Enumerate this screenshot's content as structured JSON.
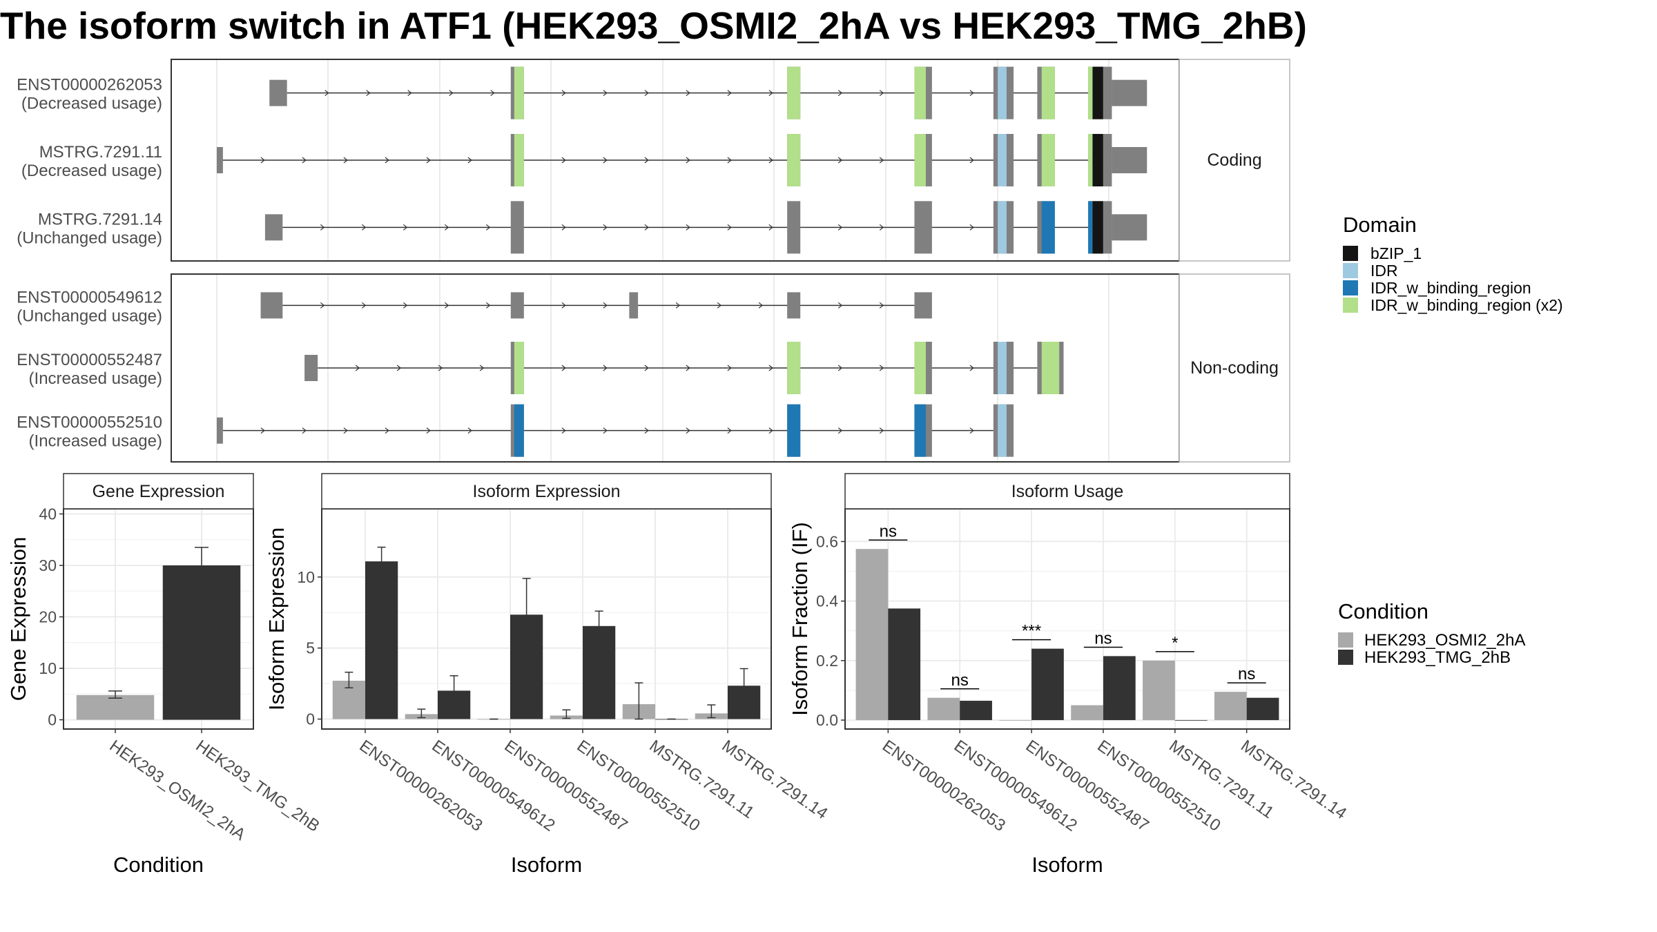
{
  "title": "The isoform switch in ATF1 (HEK293_OSMI2_2hA vs HEK293_TMG_2hB)",
  "colors": {
    "exon": "#808080",
    "bZIP_1": "#141414",
    "IDR": "#9ecae1",
    "IDR_w_binding_region": "#1f78b4",
    "IDR_w_binding_region_x2": "#b2df8a",
    "cond1": "#a9a9a9",
    "cond2": "#333333",
    "panel_border": "#333333",
    "strip_bg": "#ffffff",
    "grid": "#ebebeb"
  },
  "structure": {
    "groups": [
      {
        "label": "Coding",
        "isoforms": [
          {
            "id": "ENST00000262053",
            "usage": "(Decreased usage)",
            "start": 0.06,
            "end": 0.95,
            "exons": [
              [
                0.06,
                0.08,
                "utr"
              ],
              [
                0.335,
                0.35,
                "cds"
              ],
              [
                0.65,
                0.665,
                "cds"
              ],
              [
                0.795,
                0.815,
                "cds"
              ],
              [
                0.885,
                0.908,
                "cds"
              ],
              [
                0.935,
                0.955,
                "cds"
              ],
              [
                0.993,
                1.02,
                "cds"
              ],
              [
                1.02,
                1.06,
                "utr"
              ]
            ],
            "domains": [
              [
                0.339,
                0.35,
                "IDR_w_binding_region_x2"
              ],
              [
                0.65,
                0.665,
                "IDR_w_binding_region_x2"
              ],
              [
                0.795,
                0.808,
                "IDR_w_binding_region_x2"
              ],
              [
                0.89,
                0.9,
                "IDR"
              ],
              [
                0.94,
                0.955,
                "IDR_w_binding_region_x2"
              ],
              [
                0.993,
                0.998,
                "IDR_w_binding_region_x2"
              ],
              [
                0.998,
                1.01,
                "bZIP_1"
              ]
            ]
          },
          {
            "id": "MSTRG.7291.11",
            "usage": "(Decreased usage)",
            "start": 0.0,
            "end": 0.95,
            "exons": [
              [
                0.0,
                0.007,
                "utr"
              ],
              [
                0.335,
                0.35,
                "cds"
              ],
              [
                0.65,
                0.665,
                "cds"
              ],
              [
                0.795,
                0.815,
                "cds"
              ],
              [
                0.885,
                0.908,
                "cds"
              ],
              [
                0.935,
                0.955,
                "cds"
              ],
              [
                0.993,
                1.02,
                "cds"
              ],
              [
                1.02,
                1.06,
                "utr"
              ]
            ],
            "domains": [
              [
                0.339,
                0.35,
                "IDR_w_binding_region_x2"
              ],
              [
                0.65,
                0.665,
                "IDR_w_binding_region_x2"
              ],
              [
                0.795,
                0.808,
                "IDR_w_binding_region_x2"
              ],
              [
                0.89,
                0.9,
                "IDR"
              ],
              [
                0.94,
                0.955,
                "IDR_w_binding_region_x2"
              ],
              [
                0.993,
                0.998,
                "IDR_w_binding_region_x2"
              ],
              [
                0.998,
                1.01,
                "bZIP_1"
              ]
            ]
          },
          {
            "id": "MSTRG.7291.14",
            "usage": "(Unchanged usage)",
            "start": 0.055,
            "end": 0.95,
            "exons": [
              [
                0.055,
                0.075,
                "utr"
              ],
              [
                0.335,
                0.35,
                "cds"
              ],
              [
                0.65,
                0.665,
                "cds"
              ],
              [
                0.795,
                0.815,
                "cds"
              ],
              [
                0.885,
                0.908,
                "cds"
              ],
              [
                0.935,
                0.955,
                "cds"
              ],
              [
                0.993,
                1.02,
                "cds"
              ],
              [
                1.02,
                1.06,
                "utr"
              ]
            ],
            "domains": [
              [
                0.89,
                0.9,
                "IDR"
              ],
              [
                0.94,
                0.955,
                "IDR_w_binding_region"
              ],
              [
                0.993,
                0.998,
                "IDR_w_binding_region"
              ],
              [
                0.998,
                1.01,
                "bZIP_1"
              ]
            ]
          }
        ]
      },
      {
        "label": "Non-coding",
        "isoforms": [
          {
            "id": "ENST00000549612",
            "usage": "(Unchanged usage)",
            "start": 0.05,
            "end": 0.8,
            "exons": [
              [
                0.05,
                0.075,
                "utr"
              ],
              [
                0.335,
                0.35,
                "utr"
              ],
              [
                0.47,
                0.48,
                "utr"
              ],
              [
                0.65,
                0.665,
                "utr"
              ],
              [
                0.795,
                0.815,
                "utr"
              ]
            ],
            "domains": []
          },
          {
            "id": "ENST00000552487",
            "usage": "(Increased usage)",
            "start": 0.1,
            "end": 0.95,
            "exons": [
              [
                0.1,
                0.115,
                "utr"
              ],
              [
                0.335,
                0.35,
                "cds"
              ],
              [
                0.65,
                0.665,
                "cds"
              ],
              [
                0.795,
                0.815,
                "cds"
              ],
              [
                0.885,
                0.908,
                "cds"
              ],
              [
                0.935,
                0.965,
                "cds"
              ]
            ],
            "domains": [
              [
                0.339,
                0.35,
                "IDR_w_binding_region_x2"
              ],
              [
                0.65,
                0.665,
                "IDR_w_binding_region_x2"
              ],
              [
                0.795,
                0.808,
                "IDR_w_binding_region_x2"
              ],
              [
                0.89,
                0.9,
                "IDR"
              ],
              [
                0.94,
                0.96,
                "IDR_w_binding_region_x2"
              ]
            ]
          },
          {
            "id": "ENST00000552510",
            "usage": "(Increased usage)",
            "start": 0.0,
            "end": 0.9,
            "exons": [
              [
                0.0,
                0.007,
                "utr"
              ],
              [
                0.335,
                0.35,
                "cds"
              ],
              [
                0.65,
                0.665,
                "cds"
              ],
              [
                0.795,
                0.815,
                "cds"
              ],
              [
                0.885,
                0.908,
                "cds"
              ]
            ],
            "domains": [
              [
                0.339,
                0.35,
                "IDR_w_binding_region"
              ],
              [
                0.65,
                0.665,
                "IDR_w_binding_region"
              ],
              [
                0.795,
                0.808,
                "IDR_w_binding_region"
              ],
              [
                0.89,
                0.9,
                "IDR"
              ]
            ]
          }
        ]
      }
    ]
  },
  "domain_legend": {
    "title": "Domain",
    "items": [
      {
        "label": "bZIP_1",
        "key": "bZIP_1"
      },
      {
        "label": "IDR",
        "key": "IDR"
      },
      {
        "label": "IDR_w_binding_region",
        "key": "IDR_w_binding_region"
      },
      {
        "label": "IDR_w_binding_region (x2)",
        "key": "IDR_w_binding_region_x2"
      }
    ]
  },
  "condition_legend": {
    "title": "Condition",
    "items": [
      {
        "label": "HEK293_OSMI2_2hA",
        "key": "cond1"
      },
      {
        "label": "HEK293_TMG_2hB",
        "key": "cond2"
      }
    ]
  },
  "chart_data": [
    {
      "type": "bar",
      "title": "Gene Expression",
      "xlabel": "Condition",
      "ylabel": "Gene Expression",
      "ylim": [
        -1.8,
        41
      ],
      "yticks": [
        0,
        10,
        20,
        30,
        40
      ],
      "categories": [
        "HEK293_OSMI2_2hA",
        "HEK293_TMG_2hB"
      ],
      "values": [
        4.8,
        30.0
      ],
      "err_low": [
        4.2,
        26.5
      ],
      "err_high": [
        5.6,
        33.5
      ],
      "bar_colors": [
        "cond1",
        "cond2"
      ]
    },
    {
      "type": "bar",
      "title": "Isoform Expression",
      "xlabel": "Isoform",
      "ylabel": "Isoform Expression",
      "ylim": [
        -0.7,
        14.8
      ],
      "yticks": [
        0,
        5,
        10
      ],
      "categories": [
        "ENST00000262053",
        "ENST00000549612",
        "ENST00000552487",
        "ENST00000552510",
        "MSTRG.7291.11",
        "MSTRG.7291.14"
      ],
      "series": [
        {
          "name": "HEK293_OSMI2_2hA",
          "color": "cond1",
          "values": [
            2.7,
            0.35,
            0.0,
            0.25,
            1.05,
            0.4
          ],
          "err_low": [
            2.2,
            0.1,
            0.0,
            0.05,
            0.0,
            0.1
          ],
          "err_high": [
            3.3,
            0.7,
            0.0,
            0.65,
            2.55,
            1.0
          ]
        },
        {
          "name": "HEK293_TMG_2hB",
          "color": "cond2",
          "values": [
            11.1,
            2.0,
            7.35,
            6.55,
            0.0,
            2.35
          ],
          "err_low": [
            10.5,
            1.25,
            4.8,
            5.7,
            0.0,
            1.5
          ],
          "err_high": [
            12.1,
            3.05,
            9.9,
            7.6,
            0.0,
            3.55
          ]
        }
      ]
    },
    {
      "type": "bar",
      "title": "Isoform Usage",
      "xlabel": "Isoform",
      "ylabel": "Isoform Fraction (IF)",
      "ylim": [
        -0.03,
        0.71
      ],
      "yticks": [
        0.0,
        0.2,
        0.4,
        0.6
      ],
      "ytick_labels": [
        "0.0",
        "0.2",
        "0.4",
        "0.6"
      ],
      "categories": [
        "ENST00000262053",
        "ENST00000549612",
        "ENST00000552487",
        "ENST00000552510",
        "MSTRG.7291.11",
        "MSTRG.7291.14"
      ],
      "series": [
        {
          "name": "HEK293_OSMI2_2hA",
          "color": "cond1",
          "values": [
            0.575,
            0.075,
            0.0,
            0.05,
            0.2,
            0.095
          ]
        },
        {
          "name": "HEK293_TMG_2hB",
          "color": "cond2",
          "values": [
            0.375,
            0.065,
            0.24,
            0.215,
            0.0,
            0.075
          ]
        }
      ],
      "significance": [
        {
          "category": "ENST00000262053",
          "label": "ns",
          "y": 0.605
        },
        {
          "category": "ENST00000549612",
          "label": "ns",
          "y": 0.105
        },
        {
          "category": "ENST00000552487",
          "label": "***",
          "y": 0.27
        },
        {
          "category": "ENST00000552510",
          "label": "ns",
          "y": 0.245
        },
        {
          "category": "MSTRG.7291.11",
          "label": "*",
          "y": 0.23
        },
        {
          "category": "MSTRG.7291.14",
          "label": "ns",
          "y": 0.125
        }
      ]
    }
  ]
}
